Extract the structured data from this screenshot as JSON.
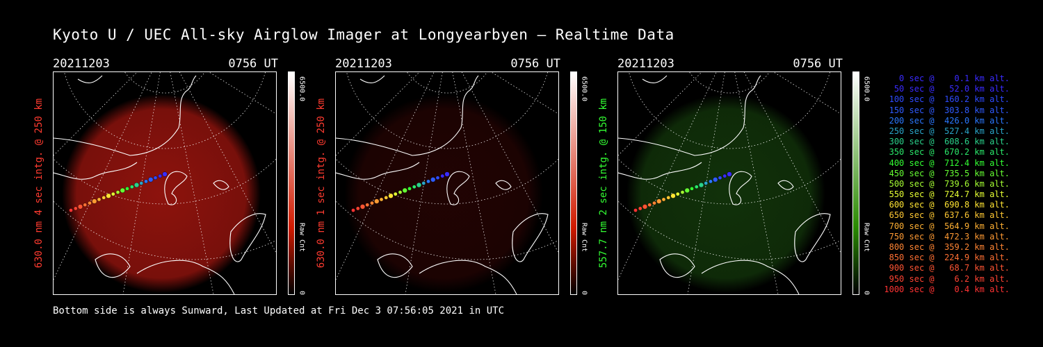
{
  "title": "Kyoto U / UEC All-sky Airglow Imager at Longyearbyen — Realtime Data",
  "footer": "Bottom side is always Sunward, Last Updated at Fri Dec  3 07:56:05 2021 in UTC",
  "panels": [
    {
      "date": "20211203",
      "time": "0756 UT",
      "label": "630.0 nm 4 sec intg. @ 250 km",
      "label_color": "#ff3b30",
      "colorbar_max": "6500.0",
      "colorbar_unit": "Raw Cnt",
      "colorbar_min": "0",
      "glow": "#c41a12",
      "glow_strength": 0.72,
      "bar_top": "#ffffff",
      "bar_bottom": "#d11a00"
    },
    {
      "date": "20211203",
      "time": "0756 UT",
      "label": "630.0 nm 1 sec intg. @ 250 km",
      "label_color": "#ff3b30",
      "colorbar_max": "6500.0",
      "colorbar_unit": "Raw Cnt",
      "colorbar_min": "0",
      "glow": "#5e0a08",
      "glow_strength": 0.35,
      "bar_top": "#ffffff",
      "bar_bottom": "#d11a00"
    },
    {
      "date": "20211203",
      "time": "0756 UT",
      "label": "557.7 nm 2 sec intg. @ 150 km",
      "label_color": "#33ff33",
      "colorbar_max": "6500.0",
      "colorbar_unit": "Raw Cnt",
      "colorbar_min": "0",
      "glow": "#1f5a12",
      "glow_strength": 0.55,
      "bar_top": "#ffffff",
      "bar_bottom": "#2a8a00"
    }
  ],
  "legend": [
    {
      "text": "   0 sec @    0.1 km alt.",
      "color": "#3a2bff"
    },
    {
      "text": "  50 sec @   52.0 km alt.",
      "color": "#3a2bff"
    },
    {
      "text": " 100 sec @  160.2 km alt.",
      "color": "#2f4bff"
    },
    {
      "text": " 150 sec @  303.8 km alt.",
      "color": "#2f5bff"
    },
    {
      "text": " 200 sec @  426.0 km alt.",
      "color": "#2a78ff"
    },
    {
      "text": " 250 sec @  527.4 km alt.",
      "color": "#2aa5c9"
    },
    {
      "text": " 300 sec @  608.6 km alt.",
      "color": "#2ad18a"
    },
    {
      "text": " 350 sec @  670.2 km alt.",
      "color": "#2ae86a"
    },
    {
      "text": " 400 sec @  712.4 km alt.",
      "color": "#33ff33"
    },
    {
      "text": " 450 sec @  735.5 km alt.",
      "color": "#66ff33"
    },
    {
      "text": " 500 sec @  739.6 km alt.",
      "color": "#a6ff33"
    },
    {
      "text": " 550 sec @  724.7 km alt.",
      "color": "#e6ff33"
    },
    {
      "text": " 600 sec @  690.8 km alt.",
      "color": "#ffe433"
    },
    {
      "text": " 650 sec @  637.6 km alt.",
      "color": "#ffc833"
    },
    {
      "text": " 700 sec @  564.9 km alt.",
      "color": "#ffb033"
    },
    {
      "text": " 750 sec @  472.3 km alt.",
      "color": "#ff9a33"
    },
    {
      "text": " 800 sec @  359.2 km alt.",
      "color": "#ff8533"
    },
    {
      "text": " 850 sec @  224.9 km alt.",
      "color": "#ff7033"
    },
    {
      "text": " 900 sec @   68.7 km alt.",
      "color": "#ff5533"
    },
    {
      "text": " 950 sec @    6.2 km alt.",
      "color": "#ff4433"
    },
    {
      "text": "1000 sec @    0.4 km alt.",
      "color": "#ff3333"
    }
  ]
}
